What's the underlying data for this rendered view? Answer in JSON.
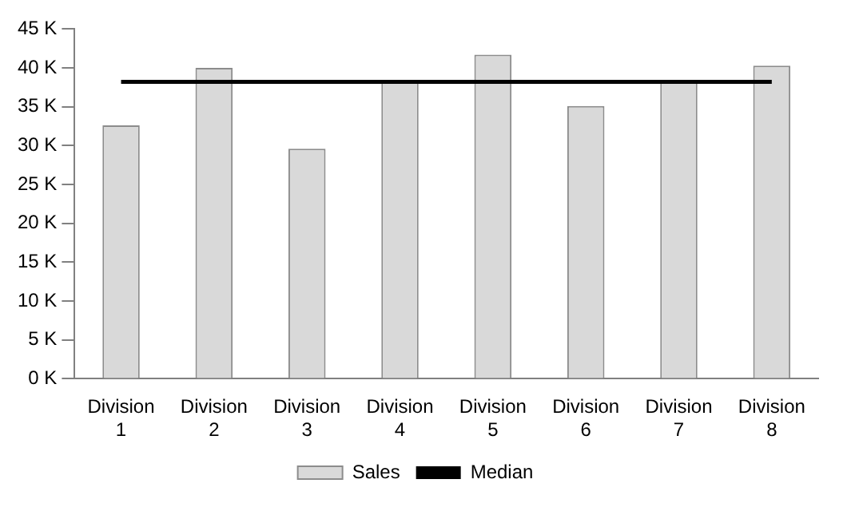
{
  "chart_data": {
    "type": "bar",
    "categories": [
      "Division 1",
      "Division 2",
      "Division 3",
      "Division 4",
      "Division 5",
      "Division 6",
      "Division 7",
      "Division 8"
    ],
    "series": [
      {
        "name": "Sales",
        "color": "#d9d9d9",
        "values": [
          32.6,
          40,
          29.6,
          38.2,
          41.7,
          35.1,
          38.2,
          40.3
        ]
      },
      {
        "name": "Median",
        "type": "line",
        "color": "#000000",
        "values": [
          38.2,
          38.2,
          38.2,
          38.2,
          38.2,
          38.2,
          38.2,
          38.2
        ]
      }
    ],
    "ylim": [
      0,
      45
    ],
    "yticks": [
      {
        "value": 0,
        "label": "0 K"
      },
      {
        "value": 5,
        "label": "5 K"
      },
      {
        "value": 10,
        "label": "10 K"
      },
      {
        "value": 15,
        "label": "15 K"
      },
      {
        "value": 20,
        "label": "20 K"
      },
      {
        "value": 25,
        "label": "25 K"
      },
      {
        "value": 30,
        "label": "30 K"
      },
      {
        "value": 35,
        "label": "35 K"
      },
      {
        "value": 40,
        "label": "40 K"
      },
      {
        "value": 45,
        "label": "45 K"
      }
    ],
    "grid": false,
    "legend": "bottom",
    "marker": "none"
  }
}
